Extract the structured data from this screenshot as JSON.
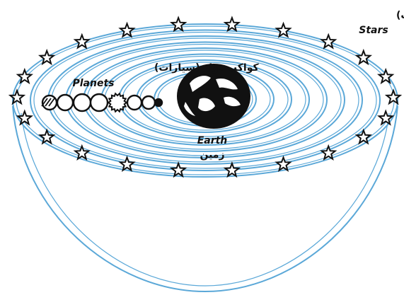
{
  "labels": {
    "stars_fa": "ستارگان (ثوابت)",
    "stars_en": "Stars",
    "planets_fa": "کواکب دوار (سیارات)",
    "planets_en": "Planets",
    "earth_en": "Earth",
    "earth_fa": "زمین"
  },
  "colors": {
    "shell": "#5ba8d8",
    "ink": "#111111",
    "background": "#ffffff"
  },
  "icons": {
    "star": "star-icon",
    "planet": "planet-icon",
    "earth": "earth-globe-icon"
  }
}
